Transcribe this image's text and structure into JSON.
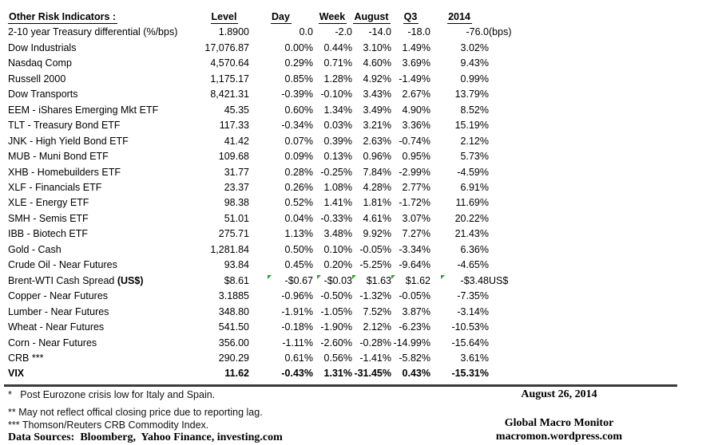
{
  "table": {
    "title": "Other Risk Indicators :",
    "columns": [
      "Level",
      "Day",
      "Week",
      "August",
      "Q3",
      "2014"
    ],
    "rows": [
      {
        "label": "2-10 year Treasury differential (%/bps)",
        "values": [
          "1.8900",
          "0.0",
          "-2.0",
          "-14.0",
          "-18.0",
          "-76.0"
        ],
        "suffix": "(bps)"
      },
      {
        "label": "Dow Industrials",
        "values": [
          "17,076.87",
          "0.00%",
          "0.44%",
          "3.10%",
          "1.49%",
          "3.02%"
        ]
      },
      {
        "label": "Nasdaq Comp",
        "values": [
          "4,570.64",
          "0.29%",
          "0.71%",
          "4.60%",
          "3.69%",
          "9.43%"
        ]
      },
      {
        "label": "Russell 2000",
        "values": [
          "1,175.17",
          "0.85%",
          "1.28%",
          "4.92%",
          "-1.49%",
          "0.99%"
        ]
      },
      {
        "label": "Dow Transports",
        "values": [
          "8,421.31",
          "-0.39%",
          "-0.10%",
          "3.43%",
          "2.67%",
          "13.79%"
        ]
      },
      {
        "label": "EEM - iShares Emerging Mkt ETF",
        "values": [
          "45.35",
          "0.60%",
          "1.34%",
          "3.49%",
          "4.90%",
          "8.52%"
        ]
      },
      {
        "label": "TLT - Treasury Bond ETF",
        "values": [
          "117.33",
          "-0.34%",
          "0.03%",
          "3.21%",
          "3.36%",
          "15.19%"
        ]
      },
      {
        "label": "JNK - High Yield Bond ETF",
        "values": [
          "41.42",
          "0.07%",
          "0.39%",
          "2.63%",
          "-0.74%",
          "2.12%"
        ]
      },
      {
        "label": "MUB - Muni Bond ETF",
        "values": [
          "109.68",
          "0.09%",
          "0.13%",
          "0.96%",
          "0.95%",
          "5.73%"
        ]
      },
      {
        "label": "XHB - Homebuilders ETF",
        "values": [
          "31.77",
          "0.28%",
          "-0.25%",
          "7.84%",
          "-2.99%",
          "-4.59%"
        ]
      },
      {
        "label": "XLF - Financials ETF",
        "values": [
          "23.37",
          "0.26%",
          "1.08%",
          "4.28%",
          "2.77%",
          "6.91%"
        ]
      },
      {
        "label": "XLE - Energy ETF",
        "values": [
          "98.38",
          "0.52%",
          "1.41%",
          "1.81%",
          "-1.72%",
          "11.69%"
        ]
      },
      {
        "label": "SMH - Semis ETF",
        "values": [
          "51.01",
          "0.04%",
          "-0.33%",
          "4.61%",
          "3.07%",
          "20.22%"
        ]
      },
      {
        "label": "IBB - Biotech ETF",
        "values": [
          "275.71",
          "1.13%",
          "3.48%",
          "9.92%",
          "7.27%",
          "21.43%"
        ]
      },
      {
        "label": "Gold - Cash",
        "values": [
          "1,281.84",
          "0.50%",
          "0.10%",
          "-0.05%",
          "-3.34%",
          "6.36%"
        ]
      },
      {
        "label": "Crude Oil - Near Futures",
        "values": [
          "93.84",
          "0.45%",
          "0.20%",
          "-5.25%",
          "-9.64%",
          "-4.65%"
        ]
      },
      {
        "label": "Brent-WTI Cash Spread ",
        "label_bold": "(US$)",
        "values": [
          "$8.61",
          "-$0.67",
          "-$0.03",
          "$1.63",
          "$1.62",
          "-$3.48"
        ],
        "suffix": "US$",
        "markers": true
      },
      {
        "label": "Copper - Near Futures",
        "values": [
          "3.1885",
          "-0.96%",
          "-0.50%",
          "-1.32%",
          "-0.05%",
          "-7.35%"
        ]
      },
      {
        "label": "Lumber - Near Futures",
        "values": [
          "348.80",
          "-1.91%",
          "-1.05%",
          "7.52%",
          "3.87%",
          "-3.14%"
        ]
      },
      {
        "label": "Wheat - Near Futures",
        "values": [
          "541.50",
          "-0.18%",
          "-1.90%",
          "2.12%",
          "-6.23%",
          "-10.53%"
        ]
      },
      {
        "label": "Corn - Near Futures",
        "values": [
          "356.00",
          "-1.11%",
          "-2.60%",
          "-0.28%",
          "-14.99%",
          "-15.64%"
        ]
      },
      {
        "label": "CRB ***",
        "values": [
          "290.29",
          "0.61%",
          "0.56%",
          "-1.41%",
          "-5.82%",
          "3.61%"
        ]
      },
      {
        "label": "VIX",
        "values": [
          "11.62",
          "-0.43%",
          "1.31%",
          "-31.45%",
          "0.43%",
          "-15.31%"
        ],
        "bold": true
      }
    ]
  },
  "footnotes": [
    "*   Post Eurozone crisis low for Italy and Spain.",
    "** May not reflect offical closing price due to reporting lag.",
    "*** Thomson/Reuters CRB Commodity Index."
  ],
  "footer": {
    "data_sources": "Data Sources:  Bloomberg,  Yahoo Finance, investing.com",
    "date": "August 26, 2014",
    "brand": "Global Macro Monitor",
    "site": "macromon.wordpress.com"
  },
  "colors": {
    "text": "#000000",
    "comment_marker_green": "#2f9e2f",
    "divider": "#3b3b3b",
    "background": "#ffffff"
  }
}
